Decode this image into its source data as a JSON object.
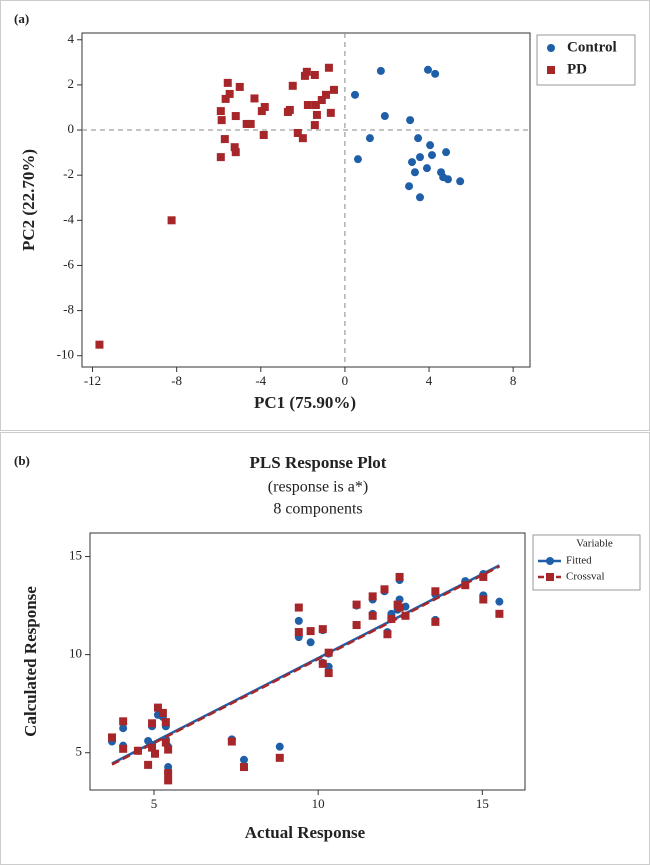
{
  "chart_data": [
    {
      "type": "scatter",
      "panel_label": "(a)",
      "x_label": "PC1 (75.90%)",
      "y_label": "PC2 (22.70%)",
      "xlim": [
        -12.5,
        8.8
      ],
      "ylim": [
        -10.5,
        4.3
      ],
      "xticks": [
        -12,
        -8,
        -4,
        0,
        4,
        8
      ],
      "yticks": [
        -10,
        -8,
        -6,
        -4,
        -2,
        0,
        2,
        4
      ],
      "reference_lines": {
        "x": 0,
        "y": 0
      },
      "series": [
        {
          "name": "Control",
          "color": "#1f5fa8",
          "marker": "circle",
          "x": [
            1.71,
            3.95,
            4.29,
            0.48,
            1.9,
            3.1,
            1.19,
            0.62,
            3.48,
            4.05,
            4.81,
            3.57,
            3.19,
            4.14,
            3.9,
            3.33,
            4.57,
            4.67,
            4.9,
            5.48,
            3.05,
            3.57
          ],
          "y": [
            2.62,
            2.67,
            2.49,
            1.56,
            0.62,
            0.44,
            -0.36,
            -1.29,
            -0.36,
            -0.67,
            -0.98,
            -1.2,
            -1.42,
            -1.11,
            -1.69,
            -1.87,
            -1.87,
            -2.09,
            -2.18,
            -2.27,
            -2.49,
            -2.98
          ]
        },
        {
          "name": "PD",
          "color": "#a6262a",
          "marker": "square",
          "x": [
            -11.67,
            -8.24,
            -5.9,
            -5.86,
            -5.19,
            -5.24,
            -5.19,
            -5.9,
            -5.57,
            -5.48,
            -5.67,
            -5.0,
            -5.71,
            -4.67,
            -4.48,
            -3.95,
            -3.81,
            -3.86,
            -2.48,
            -1.81,
            -1.43,
            -0.76,
            -0.52,
            -0.9,
            -1.1,
            -1.38,
            -1.76,
            -2.62,
            -2.71,
            -2.24,
            -2.0,
            -1.43,
            -1.33,
            -0.67,
            -1.9,
            -4.3
          ],
          "y": [
            -9.51,
            -4.0,
            0.84,
            0.44,
            0.62,
            -0.76,
            -0.98,
            -1.2,
            2.09,
            1.6,
            1.38,
            1.91,
            -0.4,
            0.27,
            0.27,
            0.84,
            1.02,
            -0.22,
            1.96,
            2.58,
            2.44,
            2.76,
            1.78,
            1.56,
            1.33,
            1.11,
            1.11,
            0.89,
            0.8,
            -0.13,
            -0.36,
            0.22,
            0.67,
            0.76,
            2.4,
            1.4
          ]
        }
      ]
    },
    {
      "type": "scatter",
      "panel_label": "(b)",
      "title": "PLS Response Plot",
      "subtitle": [
        "(response is a*)",
        "8 components"
      ],
      "x_label": "Actual Response",
      "y_label": "Calculated Response",
      "legend_title": "Variable",
      "xlim": [
        3.05,
        16.3
      ],
      "ylim": [
        3.1,
        16.2
      ],
      "xticks": [
        5,
        10,
        15
      ],
      "yticks": [
        5,
        10,
        15
      ],
      "x": [
        3.72,
        4.06,
        4.06,
        4.51,
        4.82,
        4.94,
        4.94,
        5.03,
        5.12,
        5.27,
        5.36,
        5.36,
        5.43,
        5.43,
        5.43,
        7.37,
        7.74,
        8.83,
        9.41,
        9.41,
        9.77,
        10.14,
        10.14,
        10.32,
        10.32,
        11.17,
        11.17,
        11.66,
        11.66,
        12.02,
        12.11,
        12.23,
        12.42,
        12.48,
        12.48,
        12.66,
        13.57,
        13.57,
        14.48,
        15.03,
        15.03,
        15.52
      ],
      "series": [
        {
          "name": "Fitted",
          "color": "#1f5fa8",
          "marker": "circle",
          "line_style": "solid",
          "values": [
            5.57,
            6.25,
            5.36,
            5.1,
            5.6,
            6.35,
            5.4,
            4.95,
            6.93,
            6.82,
            6.35,
            5.68,
            5.31,
            4.27,
            4.0,
            5.68,
            4.64,
            5.31,
            11.72,
            10.89,
            10.63,
            11.25,
            9.58,
            9.38,
            10.05,
            12.5,
            11.51,
            12.81,
            12.08,
            13.23,
            11.15,
            12.08,
            12.29,
            13.8,
            12.81,
            12.45,
            13.07,
            11.77,
            13.75,
            14.11,
            13.02,
            12.7
          ],
          "fit_line": {
            "x": [
              3.72,
              15.52
            ],
            "y": [
              4.45,
              14.55
            ]
          }
        },
        {
          "name": "Crossval",
          "color": "#a6262a",
          "marker": "square",
          "line_style": "dashed",
          "values": [
            5.78,
            6.6,
            5.2,
            5.1,
            4.38,
            6.5,
            5.26,
            4.95,
            7.3,
            7.03,
            6.56,
            5.52,
            5.16,
            3.59,
            3.96,
            5.57,
            4.27,
            4.74,
            12.4,
            11.15,
            11.2,
            11.3,
            9.53,
            9.06,
            10.1,
            12.55,
            11.51,
            12.97,
            11.98,
            13.33,
            11.04,
            11.82,
            12.55,
            13.96,
            12.4,
            11.98,
            13.23,
            11.67,
            13.54,
            13.96,
            12.81,
            12.08
          ],
          "fit_line": {
            "x": [
              3.72,
              15.52
            ],
            "y": [
              4.4,
              14.5
            ]
          }
        }
      ]
    }
  ]
}
